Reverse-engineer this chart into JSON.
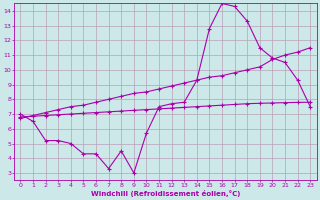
{
  "xlabel": "Windchill (Refroidissement éolien,°C)",
  "bg_color": "#cce8e8",
  "grid_color": "#b8a0b8",
  "line_color": "#aa00aa",
  "xlim": [
    -0.5,
    23.5
  ],
  "ylim": [
    2.5,
    14.5
  ],
  "xticks": [
    0,
    1,
    2,
    3,
    4,
    5,
    6,
    7,
    8,
    9,
    10,
    11,
    12,
    13,
    14,
    15,
    16,
    17,
    18,
    19,
    20,
    21,
    22,
    23
  ],
  "yticks": [
    3,
    4,
    5,
    6,
    7,
    8,
    9,
    10,
    11,
    12,
    13,
    14
  ],
  "line1_x": [
    0,
    1,
    2,
    3,
    4,
    5,
    6,
    7,
    8,
    9,
    10,
    11,
    12,
    13,
    14,
    15,
    16,
    17,
    18,
    19,
    20,
    21,
    22,
    23
  ],
  "line1_y": [
    7.0,
    6.5,
    5.2,
    5.2,
    5.0,
    4.3,
    4.3,
    3.3,
    4.5,
    3.0,
    5.7,
    7.5,
    7.7,
    7.8,
    9.3,
    12.8,
    14.5,
    14.3,
    13.3,
    11.5,
    10.8,
    10.5,
    9.3,
    7.5
  ],
  "line2_x": [
    0,
    1,
    2,
    3,
    4,
    5,
    6,
    7,
    8,
    9,
    10,
    11,
    12,
    13,
    14,
    15,
    16,
    17,
    18,
    19,
    20,
    21,
    22,
    23
  ],
  "line2_y": [
    6.7,
    6.9,
    7.1,
    7.3,
    7.5,
    7.6,
    7.8,
    8.0,
    8.2,
    8.4,
    8.5,
    8.7,
    8.9,
    9.1,
    9.3,
    9.5,
    9.6,
    9.8,
    10.0,
    10.2,
    10.7,
    11.0,
    11.2,
    11.5
  ],
  "line3_x": [
    0,
    1,
    2,
    3,
    4,
    5,
    6,
    7,
    8,
    9,
    10,
    11,
    12,
    13,
    14,
    15,
    16,
    17,
    18,
    19,
    20,
    21,
    22,
    23
  ],
  "line3_y": [
    6.8,
    6.85,
    6.9,
    6.95,
    7.0,
    7.05,
    7.1,
    7.15,
    7.2,
    7.25,
    7.3,
    7.35,
    7.4,
    7.45,
    7.5,
    7.55,
    7.6,
    7.65,
    7.7,
    7.73,
    7.75,
    7.77,
    7.79,
    7.8
  ]
}
